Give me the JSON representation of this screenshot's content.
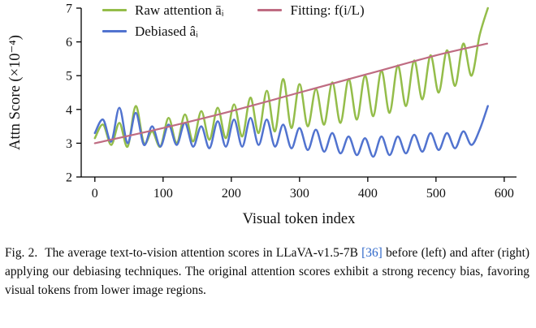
{
  "figure": {
    "caption": {
      "label": "Fig. 2.",
      "text_before_cite": "The average text-to-vision attention scores in LLaVA-v1.5-7B",
      "citation": "[36]",
      "text_after_cite": "before (left) and after (right) applying our debiasing techniques. The original attention scores exhibit a strong recency bias, favoring visual tokens from lower image regions."
    }
  },
  "colors": {
    "raw_attention": "#94bd4a",
    "debiased": "#5173cf",
    "fitting": "#bf6c82",
    "citation": "#2b65c9",
    "axis": "#000000",
    "text": "#111111"
  },
  "chart_data": {
    "type": "line",
    "title": "",
    "xlabel": "Visual token index",
    "ylabel": "Attn Score (×10⁻⁴)",
    "xlim": [
      -20,
      618
    ],
    "ylim": [
      2,
      7
    ],
    "x_ticks": [
      0,
      100,
      200,
      300,
      400,
      500,
      600
    ],
    "y_ticks": [
      2,
      3,
      4,
      5,
      6,
      7
    ],
    "grid": false,
    "legend_position": "top, two columns, no frame",
    "x": [
      0,
      12,
      24,
      36,
      48,
      60,
      72,
      84,
      96,
      108,
      120,
      132,
      144,
      156,
      168,
      180,
      192,
      204,
      216,
      228,
      240,
      252,
      264,
      276,
      288,
      300,
      312,
      324,
      336,
      348,
      360,
      372,
      384,
      396,
      408,
      420,
      432,
      444,
      456,
      468,
      480,
      492,
      504,
      516,
      528,
      540,
      552,
      564,
      576
    ],
    "series": [
      {
        "name": "Raw attention āᵢ",
        "color": "#94bd4a",
        "values": [
          3.15,
          3.55,
          2.95,
          3.6,
          2.9,
          4.1,
          3.0,
          3.35,
          2.9,
          3.75,
          3.0,
          3.85,
          3.05,
          3.95,
          3.1,
          4.05,
          3.15,
          4.15,
          3.2,
          4.35,
          3.3,
          4.55,
          3.35,
          4.9,
          3.45,
          4.75,
          3.5,
          4.6,
          3.55,
          4.8,
          3.6,
          4.9,
          3.7,
          5.0,
          3.8,
          5.15,
          3.9,
          5.3,
          4.1,
          5.45,
          4.3,
          5.6,
          4.5,
          5.75,
          4.7,
          5.95,
          5.0,
          6.2,
          7.0
        ]
      },
      {
        "name": "Debiased âᵢ",
        "color": "#5173cf",
        "values": [
          3.3,
          3.7,
          3.05,
          4.05,
          3.0,
          3.9,
          2.95,
          3.5,
          2.9,
          3.55,
          2.95,
          3.6,
          2.9,
          3.5,
          2.85,
          3.65,
          2.9,
          3.7,
          2.9,
          3.75,
          2.95,
          3.7,
          2.9,
          3.55,
          2.85,
          3.45,
          2.8,
          3.4,
          2.75,
          3.3,
          2.7,
          3.2,
          2.65,
          3.15,
          2.6,
          3.2,
          2.65,
          3.2,
          2.7,
          3.25,
          2.75,
          3.3,
          2.8,
          3.3,
          2.85,
          3.35,
          2.95,
          3.4,
          4.1
        ]
      },
      {
        "name": "Fitting: f(i/L)",
        "color": "#bf6c82",
        "x": [
          0,
          100,
          200,
          300,
          400,
          500,
          575
        ],
        "values": [
          3.0,
          3.45,
          3.95,
          4.5,
          5.05,
          5.6,
          5.95
        ]
      }
    ]
  }
}
